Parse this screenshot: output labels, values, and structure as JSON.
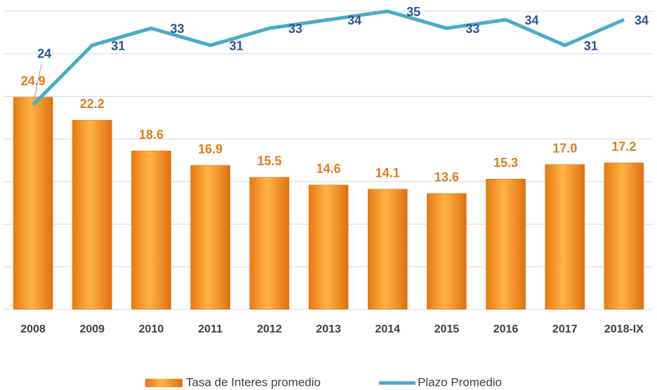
{
  "chart_data": {
    "type": "bar_line",
    "categories": [
      "2008",
      "2009",
      "2010",
      "2011",
      "2012",
      "2013",
      "2014",
      "2015",
      "2016",
      "2017",
      "2018-IX"
    ],
    "series": [
      {
        "name": "Tasa de Interes promedio",
        "color": "#f08c1e",
        "type": "bar",
        "values": [
          24.9,
          22.2,
          18.6,
          16.9,
          15.5,
          14.6,
          14.1,
          13.6,
          15.3,
          17.0,
          17.2
        ],
        "value_labels": [
          "24.9",
          "22.2",
          "18.6",
          "16.9",
          "15.5",
          "14.6",
          "14.1",
          "13.6",
          "15.3",
          "17.0",
          "17.2"
        ]
      },
      {
        "name": "Plazo Promedio",
        "color": "#4aabc5",
        "type": "line",
        "values": [
          24,
          31,
          33,
          31,
          33,
          34,
          35,
          33,
          34,
          31,
          34
        ]
      }
    ],
    "ylim": [
      0,
      35
    ],
    "yticks": [
      0,
      5,
      10,
      15,
      20,
      25,
      30,
      35
    ],
    "grid": true,
    "show_ytick_labels": false,
    "legend": "bottom"
  }
}
